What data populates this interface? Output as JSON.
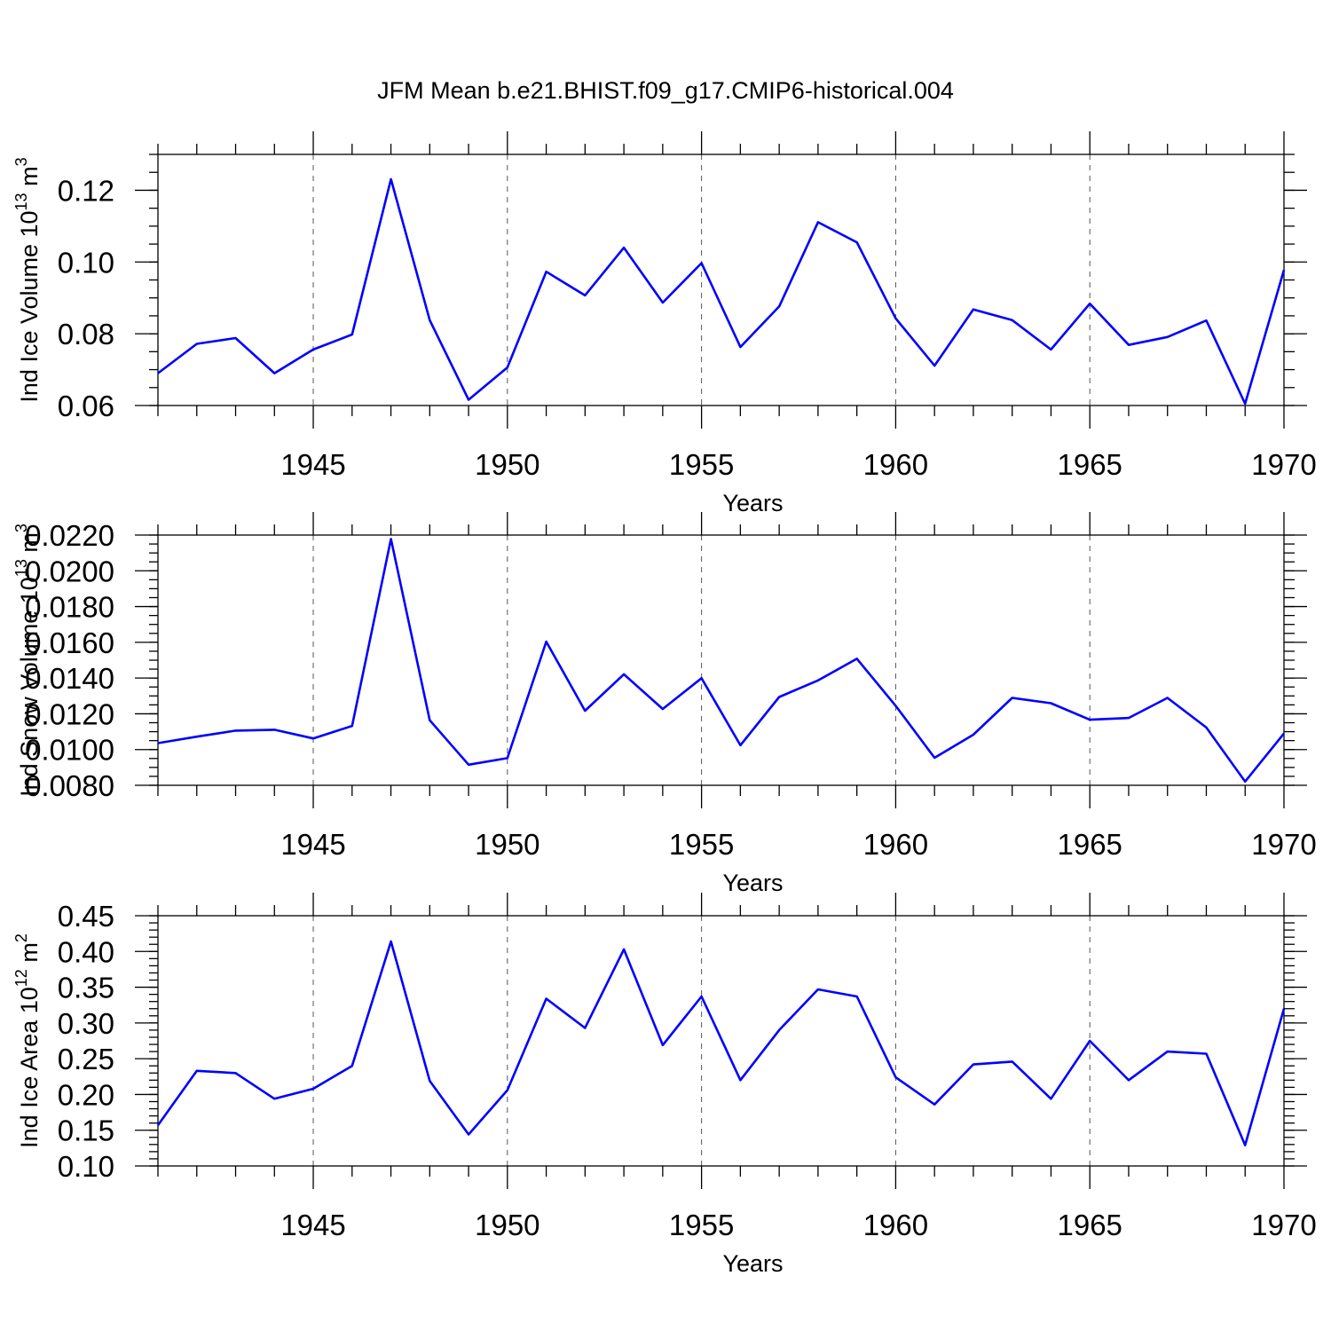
{
  "title": "JFM Mean b.e21.BHIST.f09_g17.CMIP6-historical.004",
  "series_color": "#0000ff",
  "chart_data": [
    {
      "type": "line",
      "ylabel": "Ind Ice Volume 10",
      "ylabel_exp": "13",
      "ylabel_unit": " m",
      "ylabel_unit_exp": "3",
      "xlabel": "Years",
      "xlim": [
        1941,
        1970
      ],
      "ylim": [
        0.06,
        0.13
      ],
      "yticks": [
        0.06,
        0.08,
        0.1,
        0.12
      ],
      "ytick_labels": [
        "0.06",
        "0.08",
        "0.10",
        "0.12"
      ],
      "yminor": 0.005,
      "xticks": [
        1945,
        1950,
        1955,
        1960,
        1965,
        1970
      ],
      "xtick_labels": [
        "1945",
        "1950",
        "1955",
        "1960",
        "1965",
        "1970"
      ],
      "x": [
        1941,
        1942,
        1943,
        1944,
        1945,
        1946,
        1947,
        1948,
        1949,
        1950,
        1951,
        1952,
        1953,
        1954,
        1955,
        1956,
        1957,
        1958,
        1959,
        1960,
        1961,
        1962,
        1963,
        1964,
        1965,
        1966,
        1967,
        1968,
        1969,
        1970
      ],
      "values": [
        0.069,
        0.0772,
        0.0788,
        0.069,
        0.0756,
        0.0798,
        0.1231,
        0.0838,
        0.0616,
        0.0706,
        0.0973,
        0.0907,
        0.104,
        0.0887,
        0.0997,
        0.0763,
        0.0876,
        0.1111,
        0.1055,
        0.0843,
        0.0711,
        0.0868,
        0.0838,
        0.0756,
        0.0884,
        0.0769,
        0.0791,
        0.0837,
        0.0605,
        0.0978
      ]
    },
    {
      "type": "line",
      "ylabel": "Ind Snow Volume 10",
      "ylabel_exp": "13",
      "ylabel_unit": " m",
      "ylabel_unit_exp": "3",
      "xlabel": "Years",
      "xlim": [
        1941,
        1970
      ],
      "ylim": [
        0.008,
        0.022
      ],
      "yticks": [
        0.008,
        0.01,
        0.012,
        0.014,
        0.016,
        0.018,
        0.02,
        0.022
      ],
      "ytick_labels": [
        "0.0080",
        "0.0100",
        "0.0120",
        "0.0140",
        "0.0160",
        "0.0180",
        "0.0200",
        "0.0220"
      ],
      "yminor": 0.0005,
      "xticks": [
        1945,
        1950,
        1955,
        1960,
        1965,
        1970
      ],
      "xtick_labels": [
        "1945",
        "1950",
        "1955",
        "1960",
        "1965",
        "1970"
      ],
      "x": [
        1941,
        1942,
        1943,
        1944,
        1945,
        1946,
        1947,
        1948,
        1949,
        1950,
        1951,
        1952,
        1953,
        1954,
        1955,
        1956,
        1957,
        1958,
        1959,
        1960,
        1961,
        1962,
        1963,
        1964,
        1965,
        1966,
        1967,
        1968,
        1969,
        1970
      ],
      "values": [
        0.01036,
        0.01072,
        0.01106,
        0.01111,
        0.01062,
        0.01132,
        0.02178,
        0.01164,
        0.00915,
        0.00952,
        0.01604,
        0.01217,
        0.01421,
        0.01227,
        0.01399,
        0.01024,
        0.01294,
        0.01387,
        0.01508,
        0.01245,
        0.00954,
        0.01083,
        0.01289,
        0.01259,
        0.01167,
        0.01177,
        0.01289,
        0.01123,
        0.00821,
        0.0109
      ]
    },
    {
      "type": "line",
      "ylabel": "Ind Ice Area 10",
      "ylabel_exp": "12",
      "ylabel_unit": " m",
      "ylabel_unit_exp": "2",
      "xlabel": "Years",
      "xlim": [
        1941,
        1970
      ],
      "ylim": [
        0.1,
        0.45
      ],
      "yticks": [
        0.1,
        0.15,
        0.2,
        0.25,
        0.3,
        0.35,
        0.4,
        0.45
      ],
      "ytick_labels": [
        "0.10",
        "0.15",
        "0.20",
        "0.25",
        "0.30",
        "0.35",
        "0.40",
        "0.45"
      ],
      "yminor": 0.01,
      "xticks": [
        1945,
        1950,
        1955,
        1960,
        1965,
        1970
      ],
      "xtick_labels": [
        "1945",
        "1950",
        "1955",
        "1960",
        "1965",
        "1970"
      ],
      "x": [
        1941,
        1942,
        1943,
        1944,
        1945,
        1946,
        1947,
        1948,
        1949,
        1950,
        1951,
        1952,
        1953,
        1954,
        1955,
        1956,
        1957,
        1958,
        1959,
        1960,
        1961,
        1962,
        1963,
        1964,
        1965,
        1966,
        1967,
        1968,
        1969,
        1970
      ],
      "values": [
        0.157,
        0.233,
        0.23,
        0.194,
        0.208,
        0.24,
        0.414,
        0.219,
        0.144,
        0.206,
        0.334,
        0.293,
        0.403,
        0.269,
        0.337,
        0.22,
        0.29,
        0.347,
        0.337,
        0.224,
        0.186,
        0.242,
        0.246,
        0.194,
        0.275,
        0.22,
        0.26,
        0.257,
        0.129,
        0.32
      ]
    }
  ]
}
